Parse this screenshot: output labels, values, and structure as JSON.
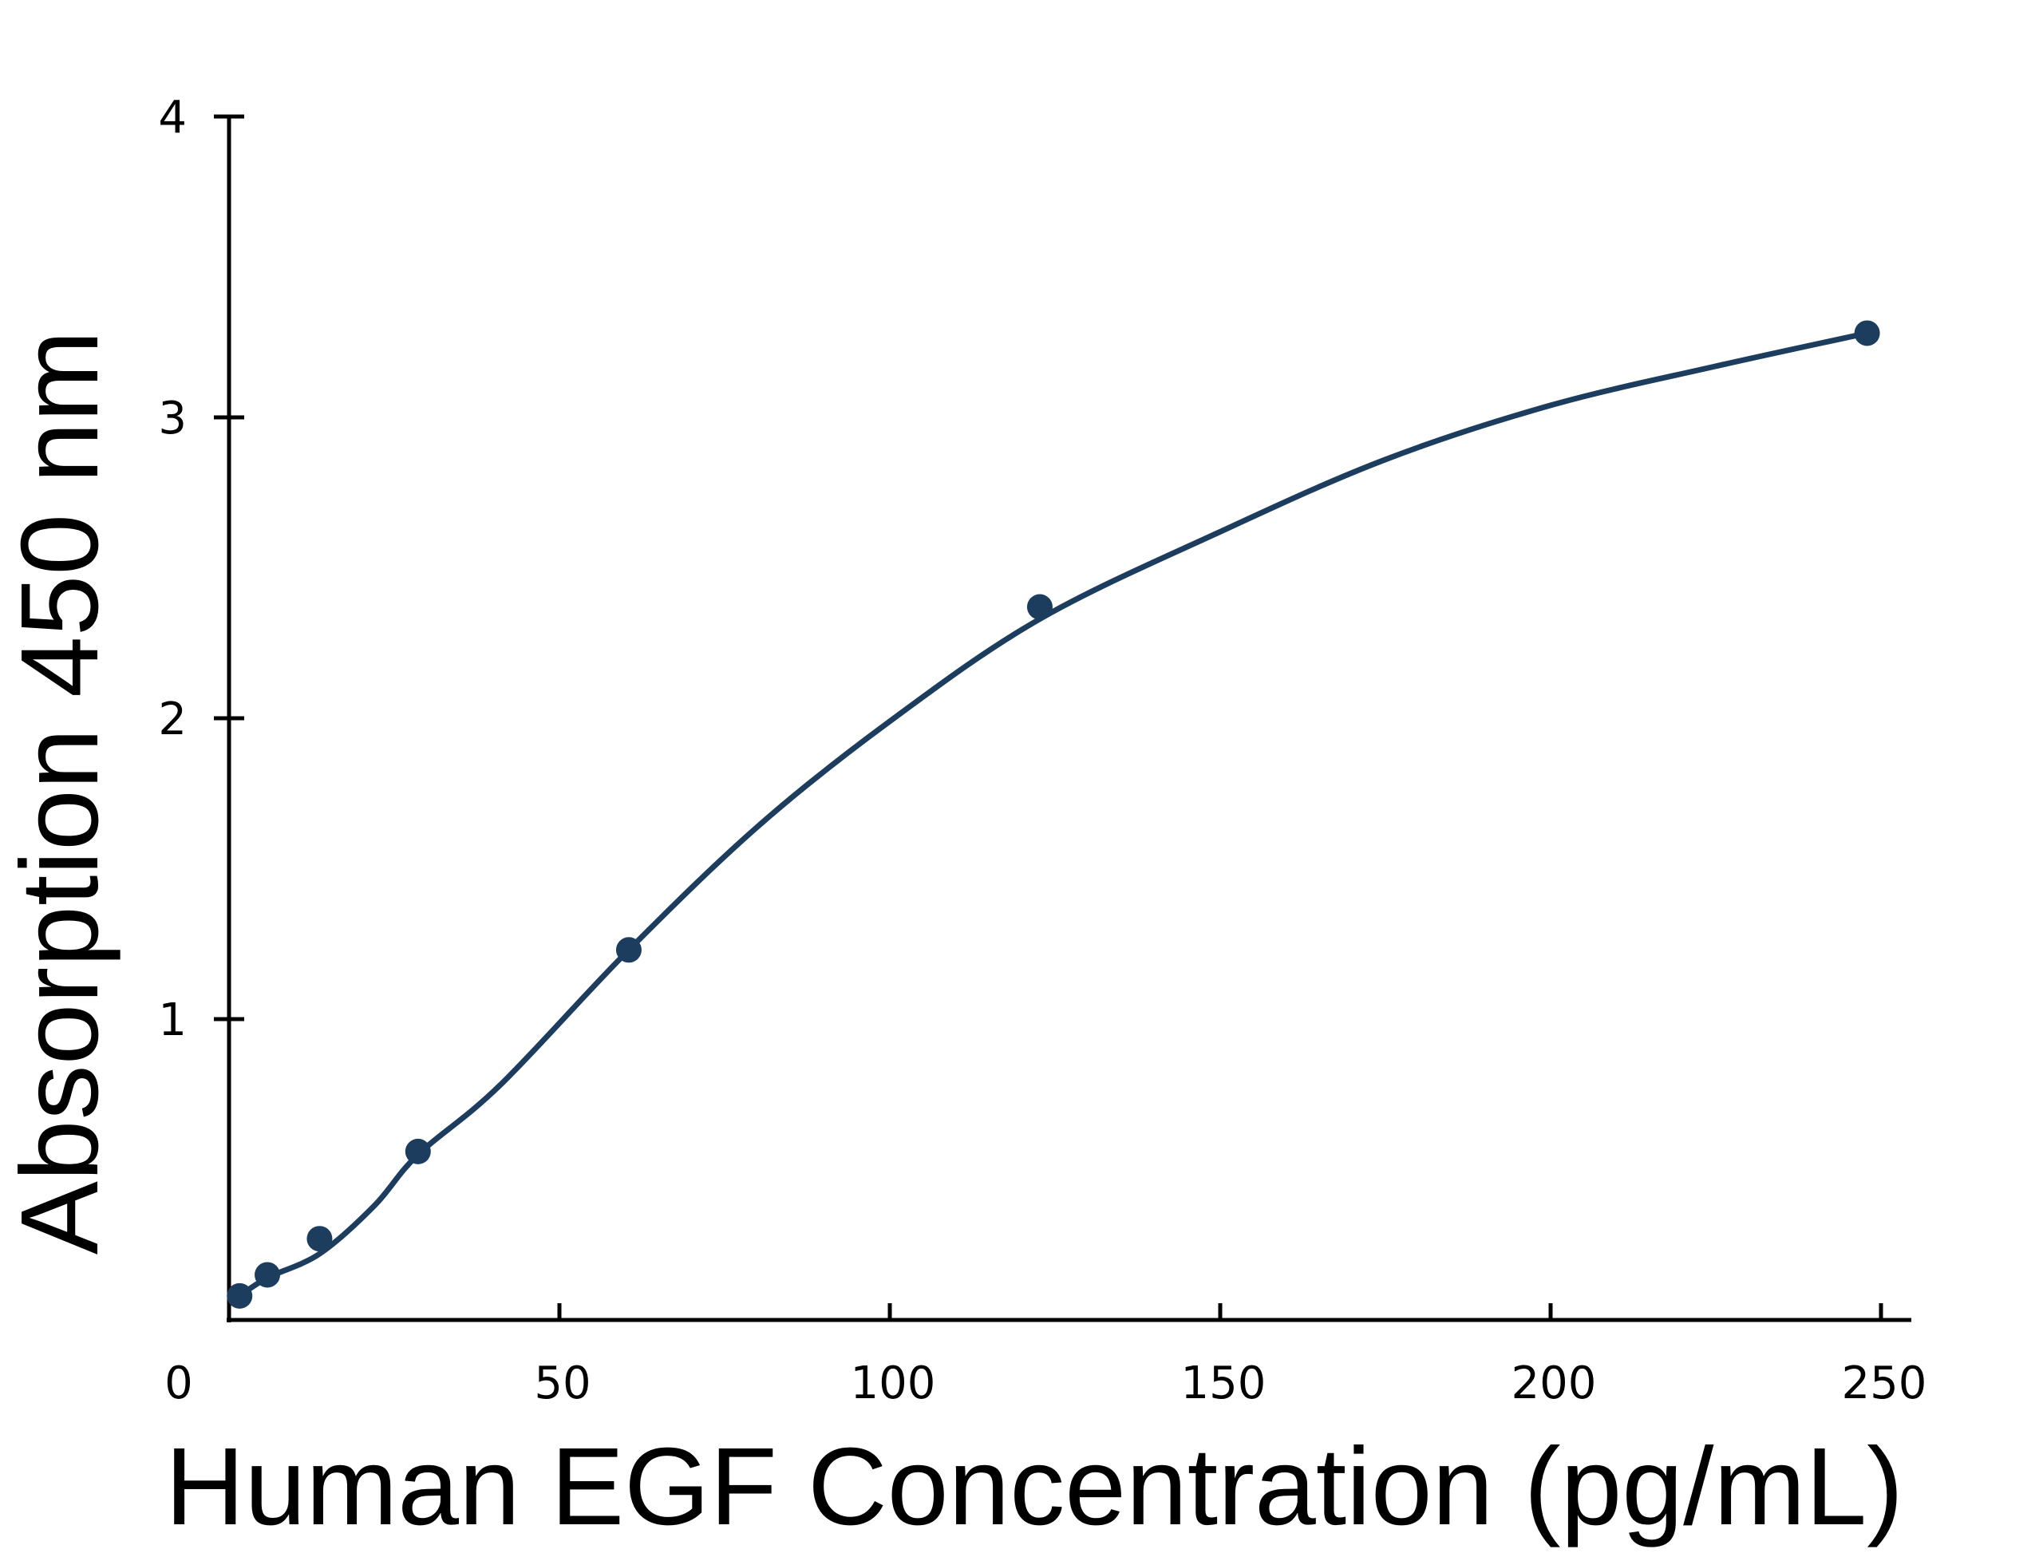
{
  "chart_data": {
    "type": "scatter",
    "title": "",
    "xlabel": "Human EGF Concentration (pg/mL)",
    "ylabel": "Absorption 450 nm",
    "xlim": [
      0,
      250
    ],
    "ylim": [
      0,
      4
    ],
    "x_ticks": [
      0,
      50,
      100,
      150,
      200,
      250
    ],
    "y_ticks": [
      1,
      2,
      3,
      4
    ],
    "grid": false,
    "legend": "none",
    "colors": {
      "series": "#1c3d5e",
      "axes": "#000000"
    },
    "series": [
      {
        "points": [
          {
            "x": 1.6,
            "y": 0.08
          },
          {
            "x": 5.8,
            "y": 0.15
          },
          {
            "x": 13.7,
            "y": 0.27
          },
          {
            "x": 28.6,
            "y": 0.56
          },
          {
            "x": 60.5,
            "y": 1.23
          },
          {
            "x": 122.7,
            "y": 2.37
          },
          {
            "x": 247.9,
            "y": 3.28
          }
        ],
        "fit_curve": [
          {
            "x": 1.6,
            "y": 0.08
          },
          {
            "x": 5.8,
            "y": 0.14
          },
          {
            "x": 13.7,
            "y": 0.22
          },
          {
            "x": 22.0,
            "y": 0.38
          },
          {
            "x": 28.6,
            "y": 0.55
          },
          {
            "x": 41.0,
            "y": 0.78
          },
          {
            "x": 60.5,
            "y": 1.23
          },
          {
            "x": 80.0,
            "y": 1.64
          },
          {
            "x": 100.0,
            "y": 1.99
          },
          {
            "x": 122.7,
            "y": 2.33
          },
          {
            "x": 150.0,
            "y": 2.62
          },
          {
            "x": 175.0,
            "y": 2.86
          },
          {
            "x": 200.0,
            "y": 3.04
          },
          {
            "x": 225.0,
            "y": 3.17
          },
          {
            "x": 247.9,
            "y": 3.28
          }
        ]
      }
    ]
  }
}
